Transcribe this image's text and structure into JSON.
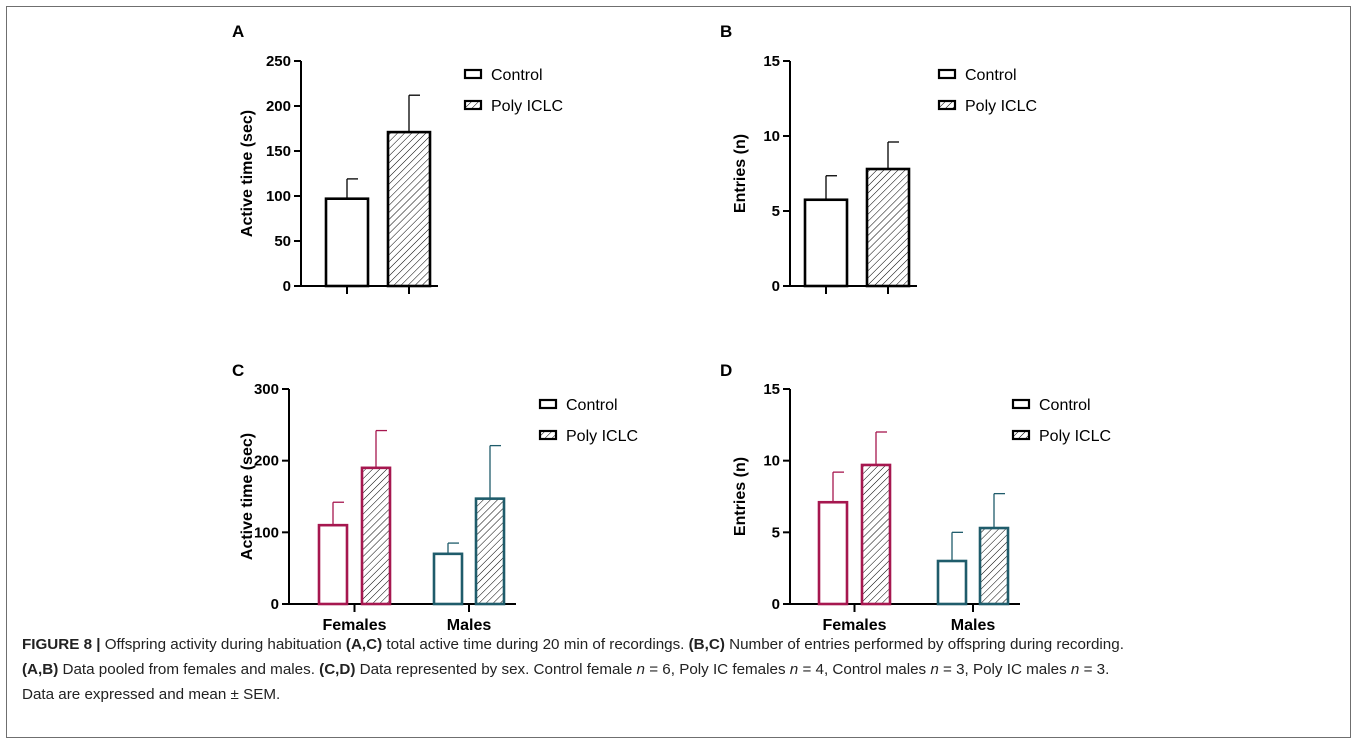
{
  "colors": {
    "black": "#000000",
    "female": "#a6174f",
    "male": "#1f5c6b",
    "caption_text": "#222222"
  },
  "legend": {
    "control_label": "Control",
    "poly_label": "Poly ICLC"
  },
  "caption": {
    "fig_label": "FIGURE 8 |",
    "s1": " Offspring activity during habituation ",
    "ref_ac": "(A,C)",
    "s2": " total active time during 20 min of recordings. ",
    "ref_bc": "(B,C)",
    "s3": " Number of entries performed by offspring during recording.",
    "ref_ab": "(A,B)",
    "s4": " Data pooled from females and males. ",
    "ref_cd": "(C,D)",
    "s5": " Data represented by sex. Control female ",
    "n": "n",
    "eq6": " = 6, Poly IC females ",
    "eq4": " = 4, Control males ",
    "eq3a": " = 3, Poly IC males ",
    "eq3b": " = 3.",
    "s6": "Data are expressed and mean ± SEM."
  },
  "chart_data": [
    {
      "panel": "A",
      "type": "bar",
      "ylabel": "Active time (sec)",
      "ylim": [
        0,
        250
      ],
      "yticks": [
        0,
        50,
        100,
        150,
        200,
        250
      ],
      "legend_position": "top-right",
      "grid": false,
      "series": [
        {
          "name": "Control",
          "values": [
            97
          ],
          "sem": [
            22
          ]
        },
        {
          "name": "Poly ICLC",
          "values": [
            171
          ],
          "sem": [
            41
          ]
        }
      ]
    },
    {
      "panel": "B",
      "type": "bar",
      "ylabel": "Entries (n)",
      "ylim": [
        0,
        15
      ],
      "yticks": [
        0,
        5,
        10,
        15
      ],
      "legend_position": "top-right",
      "grid": false,
      "series": [
        {
          "name": "Control",
          "values": [
            5.75
          ],
          "sem": [
            1.6
          ]
        },
        {
          "name": "Poly ICLC",
          "values": [
            7.8
          ],
          "sem": [
            1.8
          ]
        }
      ]
    },
    {
      "panel": "C",
      "type": "bar",
      "categories": [
        "Females",
        "Males"
      ],
      "ylabel": "Active time (sec)",
      "ylim": [
        0,
        300
      ],
      "yticks": [
        0,
        100,
        200,
        300
      ],
      "legend_position": "top-right",
      "grid": false,
      "series": [
        {
          "name": "Control",
          "values": [
            110,
            70
          ],
          "sem": [
            32,
            15
          ]
        },
        {
          "name": "Poly ICLC",
          "values": [
            190,
            147
          ],
          "sem": [
            52,
            74
          ]
        }
      ]
    },
    {
      "panel": "D",
      "type": "bar",
      "categories": [
        "Females",
        "Males"
      ],
      "ylabel": "Entries (n)",
      "ylim": [
        0,
        15
      ],
      "yticks": [
        0,
        5,
        10,
        15
      ],
      "legend_position": "top-right",
      "grid": false,
      "series": [
        {
          "name": "Control",
          "values": [
            7.1,
            3.0
          ],
          "sem": [
            2.1,
            2.0
          ]
        },
        {
          "name": "Poly ICLC",
          "values": [
            9.7,
            5.3
          ],
          "sem": [
            2.3,
            2.4
          ]
        }
      ]
    }
  ]
}
